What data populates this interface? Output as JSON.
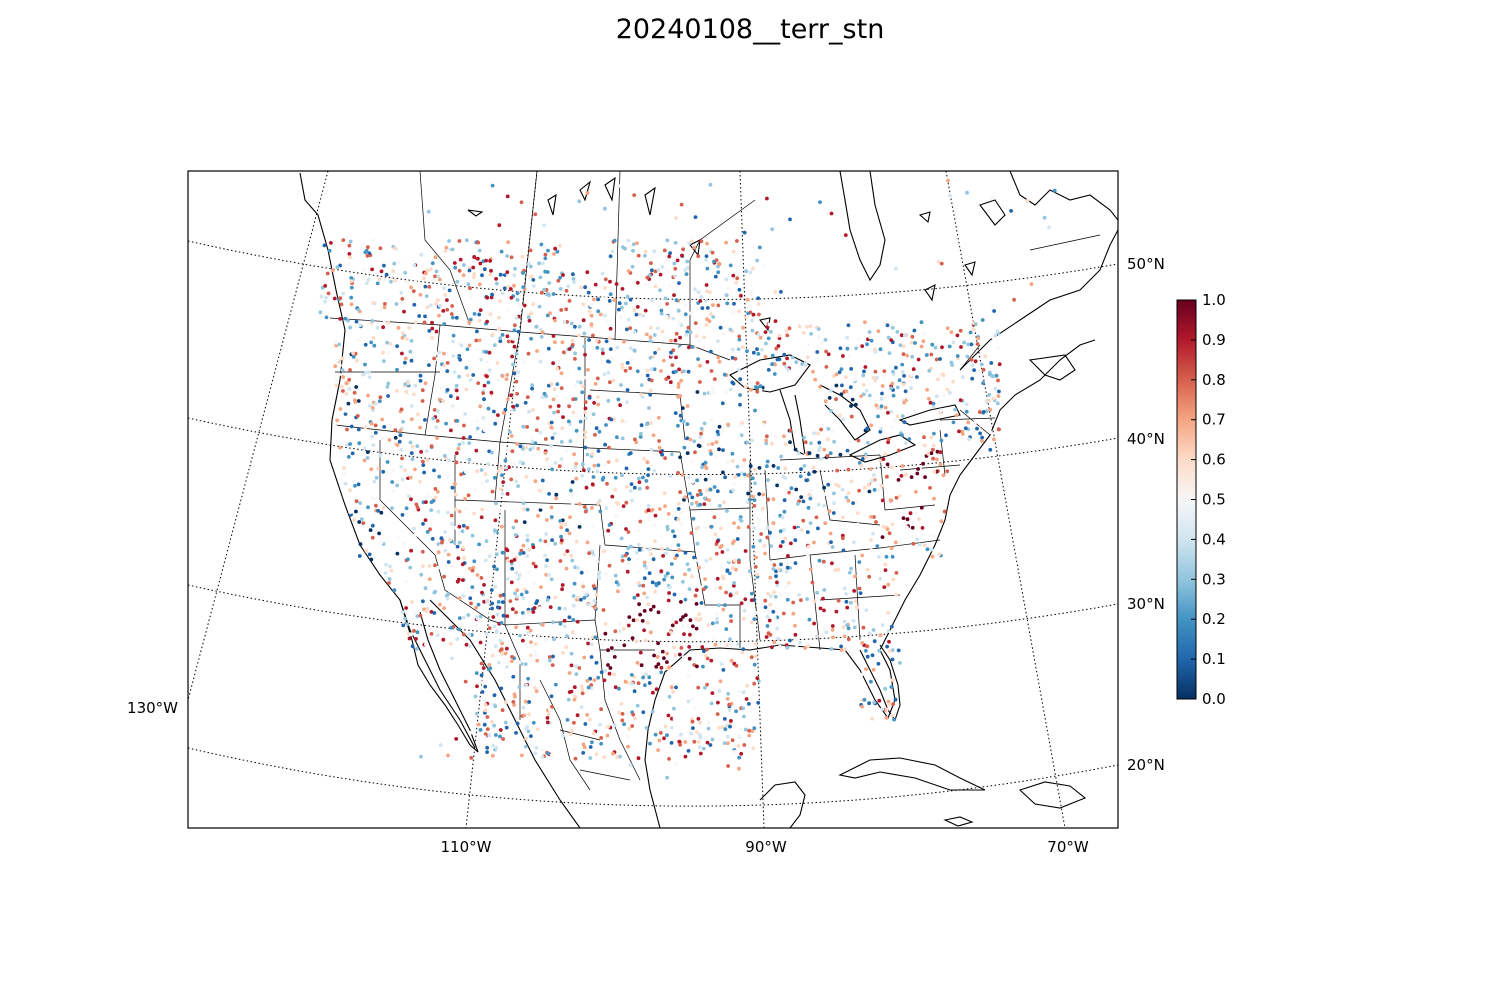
{
  "title": "20240108__terr_stn",
  "axes": {
    "lat_labels": [
      "50°N",
      "40°N",
      "30°N",
      "20°N"
    ],
    "lon_labels": [
      "130°W",
      "110°W",
      "90°W",
      "70°W"
    ]
  },
  "colorbar": {
    "min": 0.0,
    "max": 1.0,
    "ticks": [
      "0.0",
      "0.1",
      "0.2",
      "0.3",
      "0.4",
      "0.5",
      "0.6",
      "0.7",
      "0.8",
      "0.9",
      "1.0"
    ],
    "colormap": [
      "#053061",
      "#2166ac",
      "#4393c3",
      "#92c5de",
      "#d1e5f0",
      "#f7f7f7",
      "#fddbc7",
      "#f4a582",
      "#d6604d",
      "#b2182b",
      "#67001f"
    ]
  },
  "colors": {
    "coastline": "#000000",
    "graticule": "#000000",
    "background": "#ffffff"
  }
}
